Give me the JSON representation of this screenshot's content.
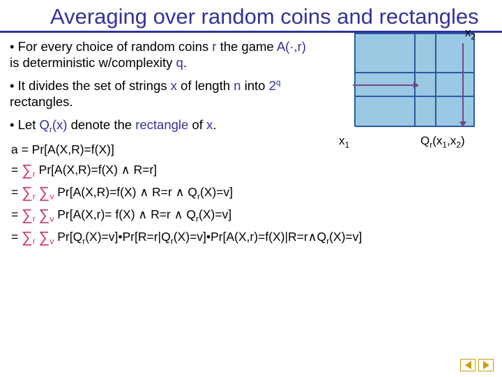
{
  "title": "Averaging over random coins and rectangles",
  "b1_a": "• For every choice of random coins ",
  "b1_r": "r",
  "b1_b": " the game ",
  "b1_A": "A(·,r)",
  "b1_c": " is deterministic w/complexity ",
  "b1_q": "q",
  "b1_d": ".",
  "b2_a": "• It divides the set of strings ",
  "b2_x": "x",
  "b2_b": " of length ",
  "b2_n": "n",
  "b2_c": " into ",
  "b2_2q": "2",
  "b2_qsup": "q",
  "b2_d": " rectangles.",
  "b3_a": "• Let ",
  "b3_Q": "Q",
  "b3_rsub": "r",
  "b3_xp": "(x)",
  "b3_b": " denote the ",
  "b3_rect": "rectangle",
  "b3_c": " of ",
  "b3_x2": "x",
  "b3_d": ".",
  "x1": "x",
  "x1sub": "1",
  "x2": "x",
  "x2sub": "2",
  "qr": "Q",
  "qrsub": "r",
  "qrargs": "(x",
  "qr1": "1",
  "qrc": ",x",
  "qr2": "2",
  "qre": ")",
  "e0": "a = Pr[A(X,R)=f(X)]",
  "e1a": "Pr[A(X,R)=f(X) ∧ R=r]",
  "e2a": "Pr[A(X,R)=f(X) ∧ R=r ∧ Q",
  "e2b": "(X)=v]",
  "e3a": "Pr[A(X,r)= f(X) ∧ R=r ∧ Q",
  "e3b": "(X)=v]",
  "e4a": "Pr[Q",
  "e4b": "(X)=v]•Pr[R=r|Q",
  "e4c": "(X)=v]•Pr[A(X,r)=f(X)|R=r∧Q",
  "e4d": "(X)=v]",
  "eq": "  = ",
  "S": "∑",
  "rs": "r",
  "vs": "v",
  "sp": " "
}
